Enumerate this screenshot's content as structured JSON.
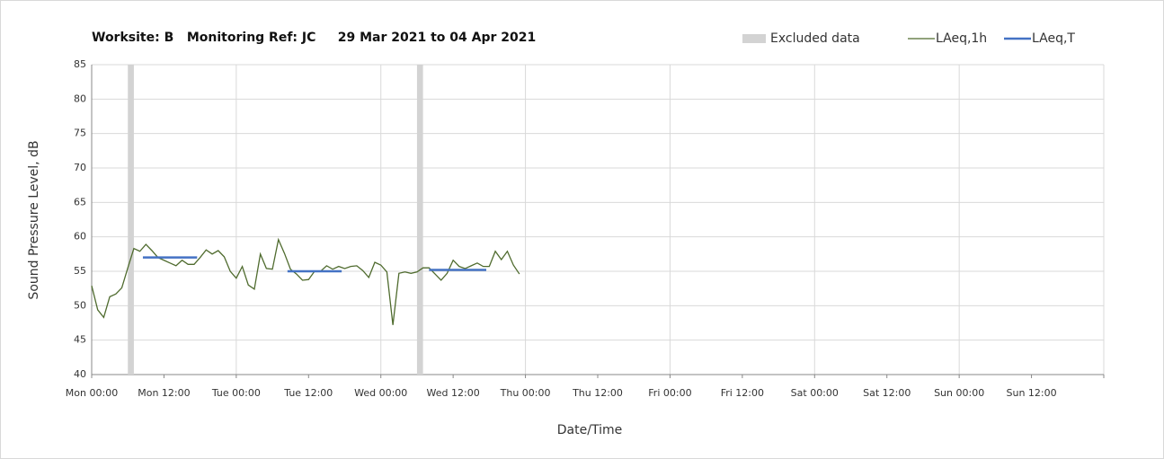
{
  "chart_data": {
    "type": "line",
    "title": "Worksite: B   Monitoring Ref: JC     29 Mar 2021 to 04 Apr 2021",
    "xlabel": "Date/Time",
    "ylabel": "Sound Pressure Level, dB",
    "xlim": [
      0,
      168
    ],
    "ylim": [
      40,
      85
    ],
    "yticks": [
      40,
      45,
      50,
      55,
      60,
      65,
      70,
      75,
      80,
      85
    ],
    "xticks": [
      {
        "value": 0,
        "label": "Mon 00:00"
      },
      {
        "value": 12,
        "label": "Mon 12:00"
      },
      {
        "value": 24,
        "label": "Tue 00:00"
      },
      {
        "value": 36,
        "label": "Tue 12:00"
      },
      {
        "value": 48,
        "label": "Wed 00:00"
      },
      {
        "value": 60,
        "label": "Wed 12:00"
      },
      {
        "value": 72,
        "label": "Thu 00:00"
      },
      {
        "value": 84,
        "label": "Thu 12:00"
      },
      {
        "value": 96,
        "label": "Fri 00:00"
      },
      {
        "value": 108,
        "label": "Fri 12:00"
      },
      {
        "value": 120,
        "label": "Sat 00:00"
      },
      {
        "value": 132,
        "label": "Sat 12:00"
      },
      {
        "value": 144,
        "label": "Sun 00:00"
      },
      {
        "value": 156,
        "label": "Sun 12:00"
      }
    ],
    "grid": true,
    "legend": "top-right",
    "excluded": {
      "name": "Excluded data",
      "color": "#d3d3d3",
      "ranges": [
        [
          6,
          7
        ],
        [
          54,
          55
        ]
      ]
    },
    "series": [
      {
        "name": "LAeq,1h",
        "color": "#4f6b2e",
        "x": [
          0,
          1,
          2,
          3,
          4,
          5,
          6,
          7,
          8,
          9,
          10,
          11,
          12,
          13,
          14,
          15,
          16,
          17,
          18,
          19,
          20,
          21,
          22,
          23,
          24,
          25,
          26,
          27,
          28,
          29,
          30,
          31,
          32,
          33,
          34,
          35,
          36,
          37,
          38,
          39,
          40,
          41,
          42,
          43,
          44,
          45,
          46,
          47,
          48,
          49,
          50,
          51,
          52,
          53,
          54,
          55,
          56,
          57,
          58,
          59,
          60,
          61,
          62,
          63,
          64,
          65,
          66,
          67,
          68,
          69,
          70,
          71
        ],
        "values": [
          52.9,
          49.4,
          48.3,
          51.3,
          51.7,
          52.6,
          55.5,
          58.3,
          57.9,
          58.9,
          58.0,
          57.0,
          56.6,
          56.2,
          55.8,
          56.6,
          56.0,
          56.0,
          57.0,
          58.1,
          57.5,
          58.0,
          57.1,
          55.0,
          54.0,
          55.7,
          53.0,
          52.4,
          57.5,
          55.4,
          55.3,
          59.6,
          57.6,
          55.3,
          54.6,
          53.7,
          53.8,
          55.0,
          55.0,
          55.8,
          55.3,
          55.7,
          55.4,
          55.7,
          55.8,
          55.1,
          54.1,
          56.3,
          55.9,
          54.9,
          47.2,
          54.7,
          54.9,
          54.7,
          54.9,
          55.5,
          55.5,
          54.6,
          53.7,
          54.7,
          56.6,
          55.7,
          55.4,
          55.8,
          56.2,
          55.7,
          55.7,
          57.9,
          56.7,
          57.9,
          55.9,
          54.6
        ]
      },
      {
        "name": "LAeq,T",
        "color": "#4472c4",
        "x": [
          8.5,
          17.5,
          17.5,
          32.5,
          41.5,
          41.5,
          56,
          65.5
        ],
        "values": [
          57,
          57,
          null,
          55,
          55,
          null,
          55.2,
          55.2
        ]
      }
    ]
  }
}
